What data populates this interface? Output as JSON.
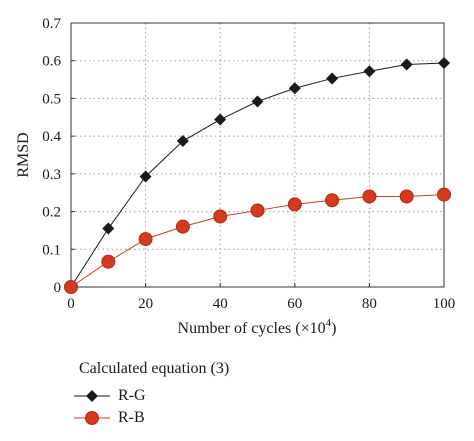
{
  "chart_data": {
    "type": "line",
    "xlabel": "Number of cycles (×10",
    "xlabel_sup": "4",
    "xlabel_tail": ")",
    "ylabel": "RMSD",
    "xlim": [
      0,
      100
    ],
    "ylim": [
      0,
      0.7
    ],
    "xticks": [
      "0",
      "20",
      "40",
      "60",
      "80",
      "100"
    ],
    "yticks": [
      "0",
      "0.1",
      "0.2",
      "0.3",
      "0.4",
      "0.5",
      "0.6",
      "0.7"
    ],
    "grid": true,
    "legend_title": "Calculated equation (3)",
    "legend_position": "below",
    "series": [
      {
        "name": "R-G",
        "marker": "diamond",
        "color": "#1a1a1a",
        "x": [
          0,
          10,
          20,
          30,
          40,
          50,
          60,
          70,
          80,
          90,
          100
        ],
        "y": [
          0,
          0.155,
          0.293,
          0.387,
          0.444,
          0.492,
          0.527,
          0.553,
          0.572,
          0.59,
          0.594
        ]
      },
      {
        "name": "R-B",
        "marker": "circle",
        "color": "#d63a1e",
        "x": [
          0,
          10,
          20,
          30,
          40,
          50,
          60,
          70,
          80,
          90,
          100
        ],
        "y": [
          0,
          0.067,
          0.127,
          0.16,
          0.187,
          0.203,
          0.219,
          0.23,
          0.24,
          0.24,
          0.245
        ]
      }
    ]
  }
}
